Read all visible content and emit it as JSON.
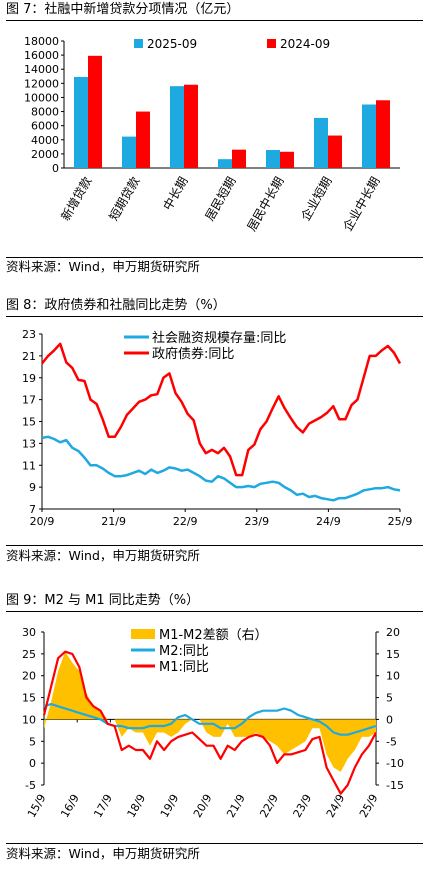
{
  "figures": [
    {
      "title": "图 7：社融中新增贷款分项情况（亿元）",
      "source": "资料来源：Wind，申万期货研究所"
    },
    {
      "title": "图 8：政府债券和社融同比走势（%）",
      "source": "资料来源：Wind，申万期货研究所"
    },
    {
      "title": "图 9：M2 与 M1 同比走势（%）",
      "source": "资料来源：Wind，申万期货研究所"
    }
  ],
  "chart_data": [
    {
      "type": "bar",
      "categories": [
        "新增贷款",
        "短期贷款",
        "中长期",
        "居民短期",
        "居民中长期",
        "企业短期",
        "企业中长期"
      ],
      "series": [
        {
          "name": "2025-09",
          "color": "#1fa9e1",
          "values": [
            12900,
            4450,
            11600,
            1250,
            2550,
            7100,
            9000
          ]
        },
        {
          "name": "2024-09",
          "color": "#ff0000",
          "values": [
            15900,
            8000,
            11800,
            2600,
            2300,
            4600,
            9600
          ]
        }
      ],
      "ylim": [
        0,
        18000
      ],
      "yticks": [
        0,
        2000,
        4000,
        6000,
        8000,
        10000,
        12000,
        14000,
        16000,
        18000
      ],
      "legend": "top"
    },
    {
      "type": "line",
      "x_labels": [
        "20/9",
        "21/9",
        "22/9",
        "23/9",
        "24/9",
        "25/9"
      ],
      "x_start": "2020-09",
      "x_end": "2025-09",
      "ylim": [
        7,
        23
      ],
      "yticks": [
        7,
        9,
        11,
        13,
        15,
        17,
        19,
        21,
        23
      ],
      "legend": "top",
      "series": [
        {
          "name": "社会融资规模存量:同比",
          "color": "#1fa9e1",
          "values": [
            13.5,
            13.6,
            13.4,
            13.1,
            13.3,
            12.6,
            12.3,
            11.7,
            11.0,
            11.0,
            10.7,
            10.3,
            10.0,
            10.0,
            10.1,
            10.3,
            10.5,
            10.2,
            10.6,
            10.3,
            10.5,
            10.8,
            10.7,
            10.5,
            10.6,
            10.3,
            10.0,
            9.6,
            9.5,
            10.0,
            9.8,
            9.4,
            9.0,
            9.0,
            9.1,
            9.0,
            9.3,
            9.4,
            9.5,
            9.4,
            9.0,
            8.7,
            8.3,
            8.4,
            8.1,
            8.2,
            8.0,
            7.9,
            7.8,
            8.0,
            8.0,
            8.2,
            8.4,
            8.7,
            8.8,
            8.9,
            8.9,
            9.0,
            8.8,
            8.7
          ]
        },
        {
          "name": "政府债券:同比",
          "color": "#ff0000",
          "values": [
            20.3,
            21.0,
            21.5,
            22.1,
            20.4,
            19.9,
            18.8,
            18.7,
            17.0,
            16.6,
            15.2,
            13.6,
            13.6,
            14.5,
            15.6,
            16.2,
            16.8,
            17.0,
            17.4,
            17.5,
            19.0,
            19.4,
            17.6,
            16.8,
            15.7,
            15.1,
            13.0,
            12.1,
            12.4,
            12.1,
            12.6,
            11.8,
            10.1,
            10.1,
            12.4,
            12.9,
            14.3,
            15.0,
            16.2,
            17.3,
            16.2,
            15.3,
            14.5,
            14.0,
            14.8,
            15.1,
            15.4,
            15.8,
            16.4,
            15.2,
            15.2,
            16.5,
            17.0,
            19.0,
            21.0,
            21.0,
            21.5,
            21.9,
            21.3,
            20.3
          ]
        }
      ]
    },
    {
      "type": "line",
      "x_labels": [
        "15/9",
        "16/9",
        "17/9",
        "18/9",
        "19/9",
        "20/9",
        "21/9",
        "22/9",
        "23/9",
        "24/9",
        "25/9"
      ],
      "x_start": "2015-09",
      "x_end": "2025-09",
      "ylim": [
        -5,
        30
      ],
      "yticks": [
        -5,
        0,
        5,
        10,
        15,
        20,
        25,
        30
      ],
      "ylim_right": [
        -15,
        20
      ],
      "yticks_right": [
        -15,
        -10,
        -5,
        0,
        5,
        10,
        15,
        20
      ],
      "legend": "top",
      "series": [
        {
          "name": "M1-M2差额（右）",
          "type": "area",
          "axis": "right",
          "color": "#ffc000",
          "values": [
            -2,
            4,
            11,
            15.5,
            13,
            11,
            6,
            3,
            2,
            0,
            0,
            -4,
            -2,
            -3,
            -3,
            -6,
            -3,
            -3,
            -4,
            -3,
            -1,
            0,
            0,
            -3,
            -4,
            -4,
            -1,
            -4,
            -4,
            -4,
            -3,
            -4,
            -5,
            -6,
            -8,
            -7,
            -6,
            -5,
            -2,
            -2,
            -8,
            -11,
            -12,
            -9,
            -7,
            -4,
            -4,
            -3
          ]
        },
        {
          "name": "M2:同比",
          "type": "line",
          "axis": "left",
          "color": "#1fa9e1",
          "values": [
            13,
            13.5,
            13,
            12.5,
            12,
            11.5,
            11,
            10.5,
            10,
            9,
            8.5,
            8.5,
            8,
            8,
            8,
            8.5,
            8.5,
            8.5,
            9,
            10.5,
            11,
            10,
            9,
            9,
            9,
            8,
            8,
            8,
            9,
            10.5,
            11.5,
            12,
            12,
            12,
            12.5,
            12,
            11,
            10.5,
            10,
            9.5,
            8.5,
            7,
            6.5,
            6.5,
            7,
            7.5,
            8,
            8.5
          ]
        },
        {
          "name": "M1:同比",
          "type": "line",
          "axis": "left",
          "color": "#ff0000",
          "values": [
            11,
            17.5,
            24,
            25.5,
            25,
            22,
            15,
            13,
            12,
            9,
            8.5,
            3,
            4,
            3,
            3,
            1,
            5,
            3,
            5,
            6,
            6.5,
            7,
            5.5,
            4,
            4,
            1,
            4,
            3,
            5,
            6,
            6.5,
            6,
            4,
            0,
            2,
            2,
            2.5,
            3,
            5.5,
            6,
            -1,
            -4,
            -7,
            -5,
            -1,
            2,
            4,
            7
          ]
        }
      ]
    }
  ]
}
